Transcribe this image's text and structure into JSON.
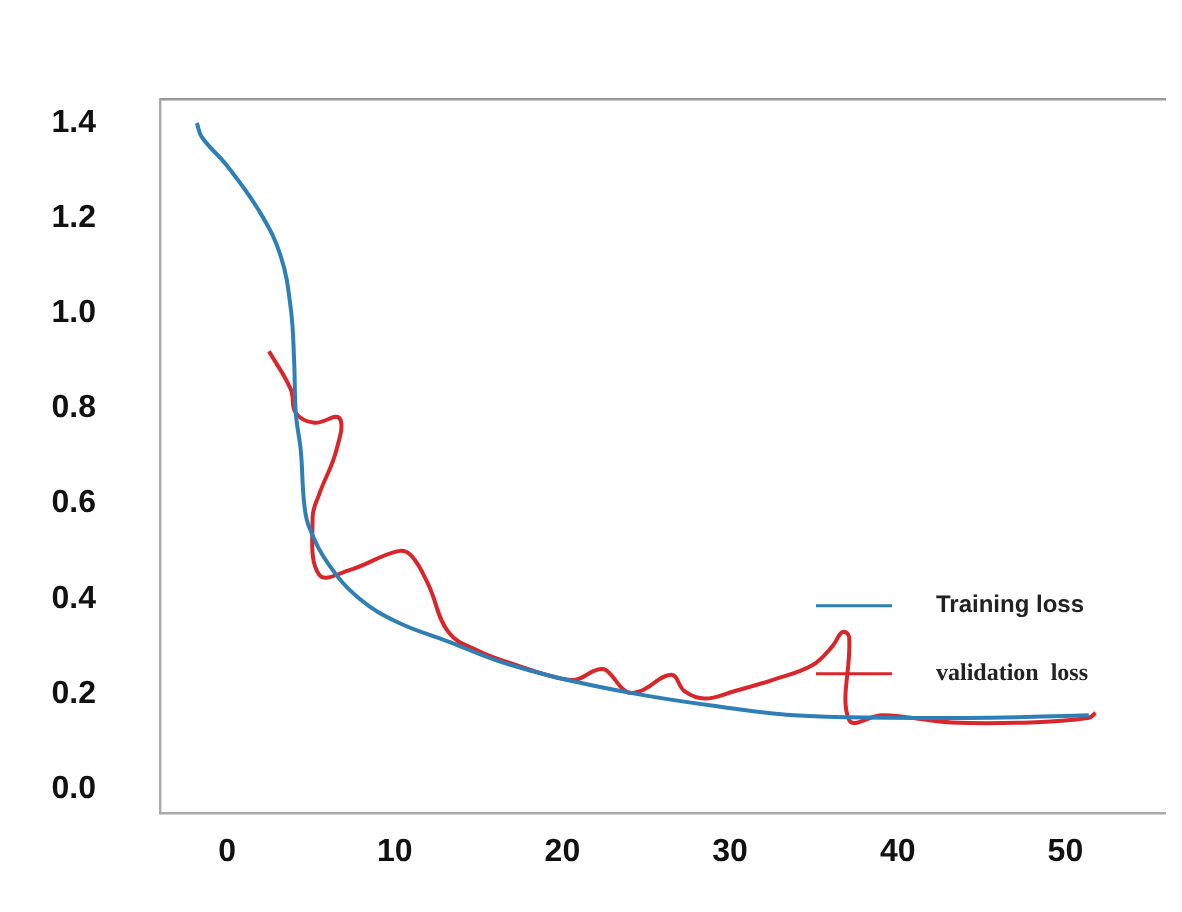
{
  "chart_data": {
    "type": "line",
    "xlim": [
      -4,
      56
    ],
    "ylim": [
      -0.05,
      1.45
    ],
    "xticks": [
      0,
      10,
      20,
      30,
      40,
      50
    ],
    "yticks": [
      {
        "value": 0,
        "label": "0.0"
      },
      0.2,
      0.4,
      0.6,
      0.8,
      {
        "value": 1,
        "label": "1.0"
      },
      1.2,
      1.4
    ],
    "grid": false,
    "legend": "right",
    "line_style": "solid",
    "marker": "none",
    "series": [
      {
        "name": "Training loss",
        "color": "#2e7fb5",
        "x": [
          -1.8,
          -1.5,
          0,
          2,
          3.2,
          3.8,
          4.0,
          4.1,
          4.4,
          4.6,
          4.9,
          6.1,
          7.9,
          10.2,
          13.2,
          16.1,
          19.6,
          24.4,
          29,
          33.8,
          39.6,
          45.5,
          51.4
        ],
        "values": [
          1.4,
          1.37,
          1.31,
          1.21,
          1.12,
          1.01,
          0.9,
          0.79,
          0.71,
          0.6,
          0.55,
          0.47,
          0.4,
          0.35,
          0.31,
          0.27,
          0.235,
          0.2,
          0.175,
          0.155,
          0.15,
          0.15,
          0.155
        ]
      },
      {
        "name": "validation  loss",
        "color": "#d9262b",
        "x": [
          2.5,
          3.8,
          4.1,
          5.2,
          6.7,
          6.5,
          5.5,
          5.1,
          5.5,
          7.3,
          10.2,
          11,
          12,
          13.2,
          15,
          17.3,
          19.6,
          20.8,
          22,
          22.6,
          23.8,
          24.6,
          26.5,
          27.3,
          28.5,
          30.2,
          32.6,
          34.9,
          36.1,
          36.7,
          37.1,
          37.1,
          39.1,
          43.2,
          47.9,
          51.4,
          51.8
        ],
        "values": [
          0.92,
          0.84,
          0.79,
          0.77,
          0.78,
          0.71,
          0.62,
          0.57,
          0.45,
          0.46,
          0.5,
          0.49,
          0.43,
          0.33,
          0.29,
          0.26,
          0.235,
          0.23,
          0.25,
          0.25,
          0.205,
          0.205,
          0.24,
          0.205,
          0.19,
          0.205,
          0.23,
          0.26,
          0.3,
          0.33,
          0.32,
          0.145,
          0.155,
          0.14,
          0.14,
          0.15,
          0.16
        ]
      }
    ]
  }
}
